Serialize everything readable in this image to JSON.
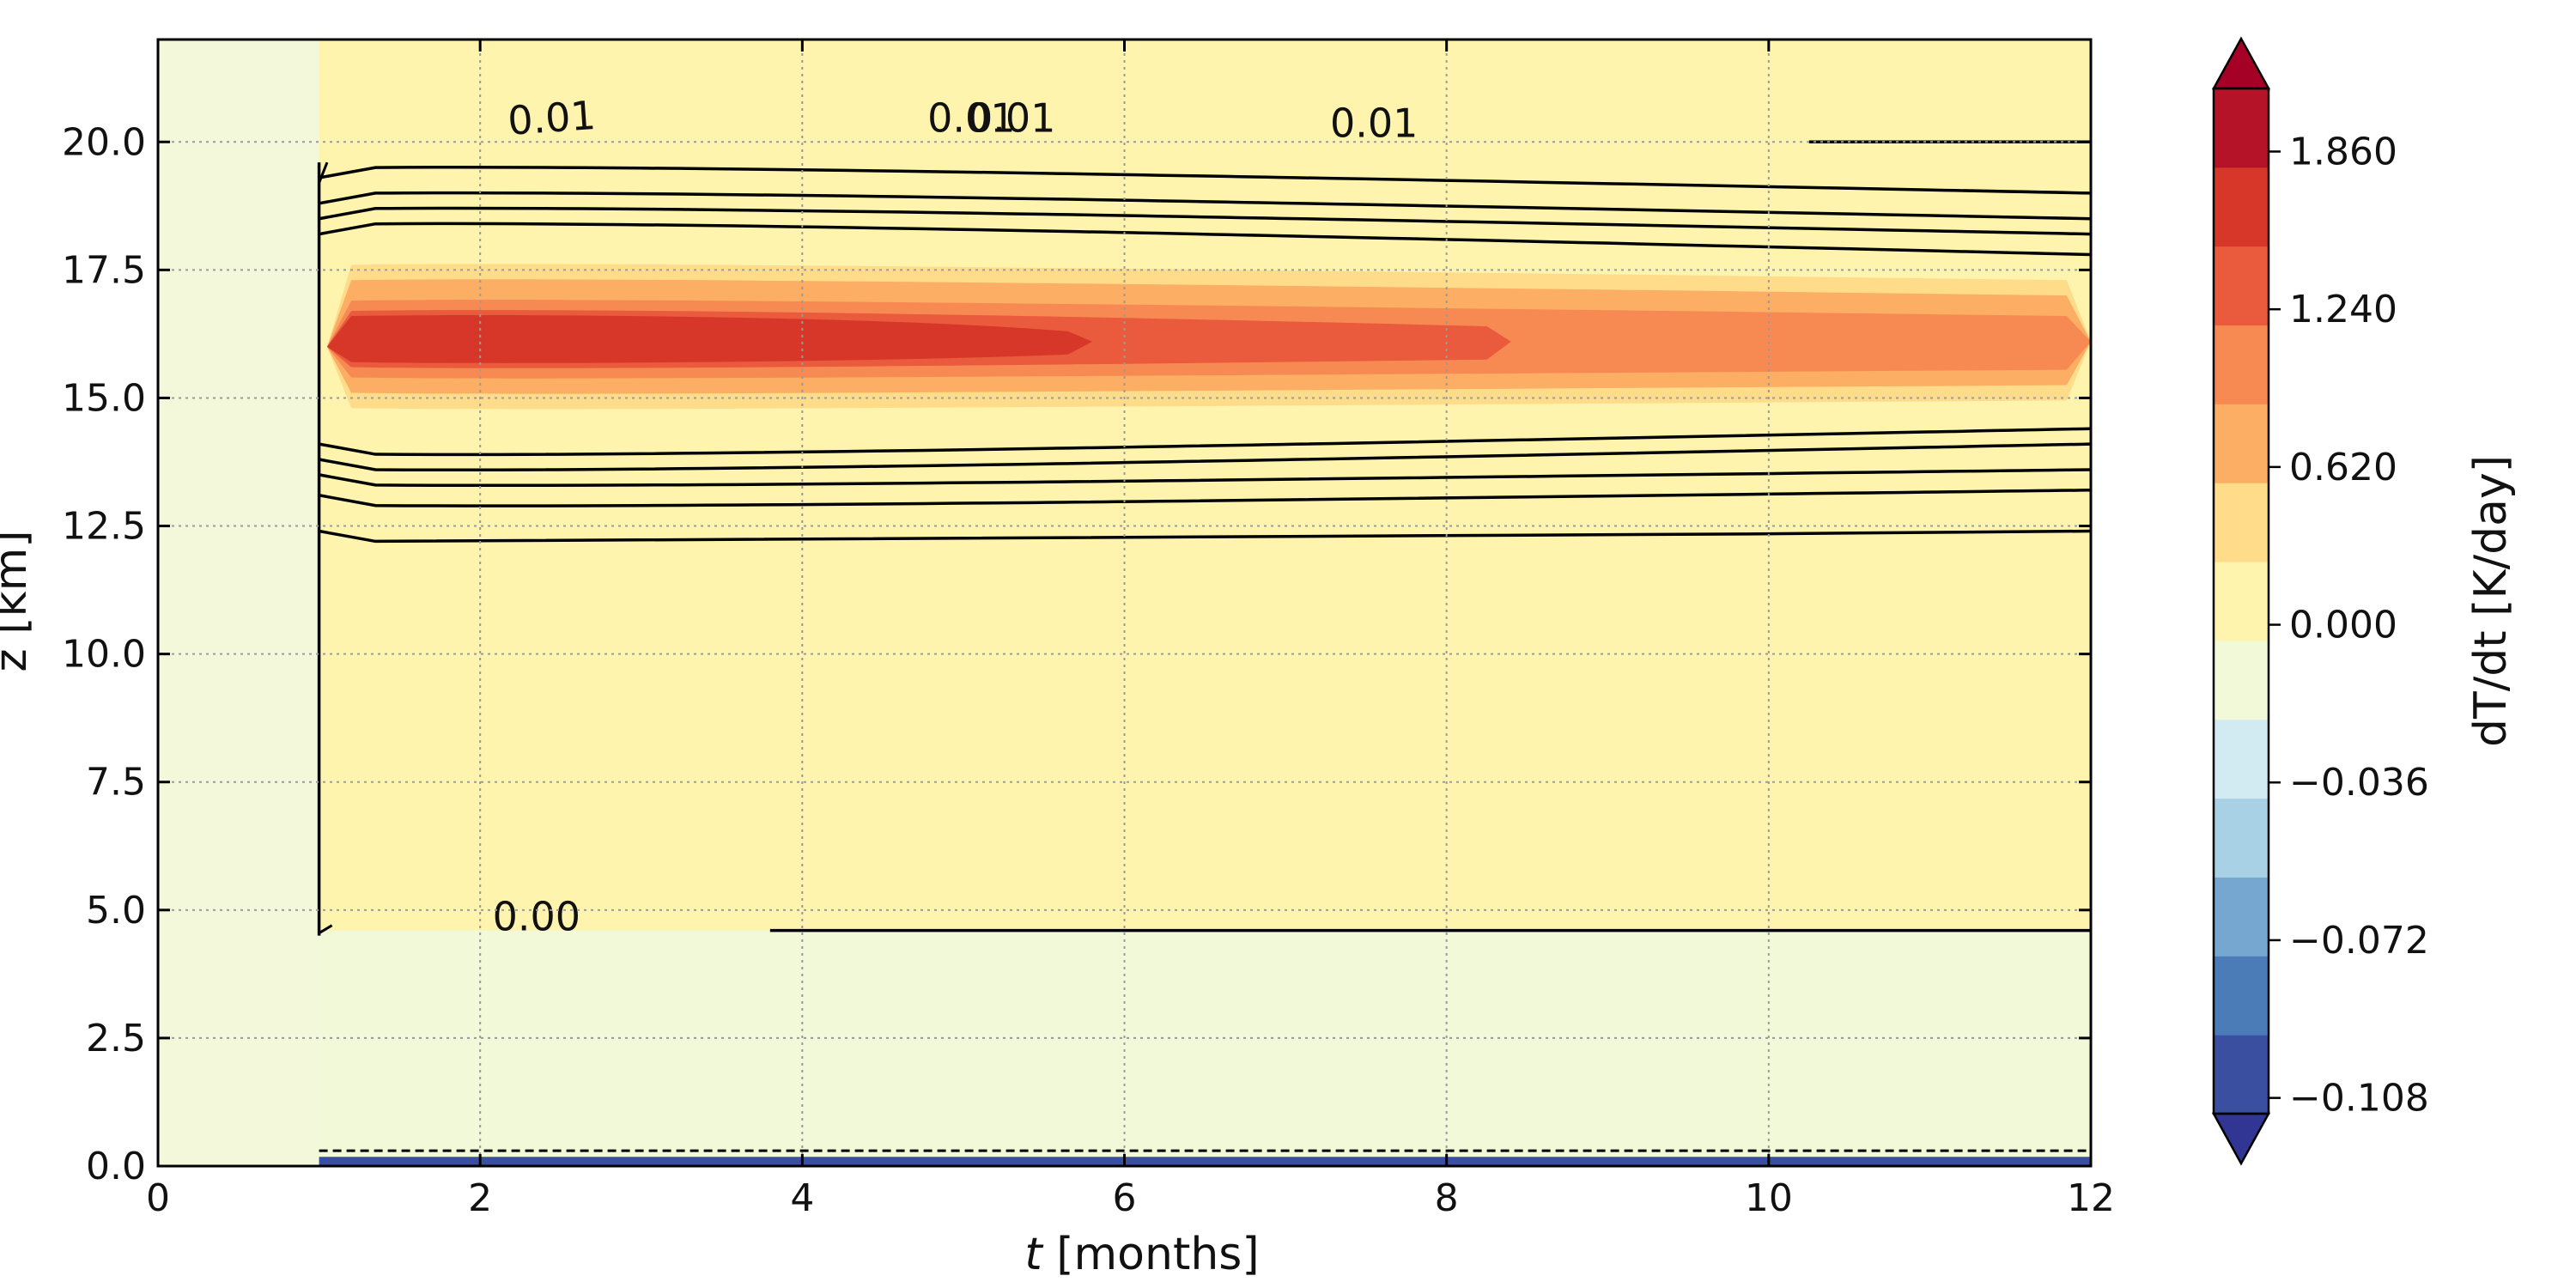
{
  "chart_data": {
    "type": "contour",
    "title": "",
    "x_axis": {
      "label_italic": "t",
      "label_rest": " [months]",
      "range": [
        0,
        12
      ],
      "ticks": [
        0,
        2,
        4,
        6,
        8,
        10,
        12
      ],
      "tick_labels": [
        "0",
        "2",
        "4",
        "6",
        "8",
        "10",
        "12"
      ]
    },
    "y_axis": {
      "label": "z [km]",
      "range": [
        0,
        22
      ],
      "ticks": [
        0,
        2.5,
        5,
        7.5,
        10,
        12.5,
        15,
        17.5,
        20
      ],
      "tick_labels": [
        "0.0",
        "2.5",
        "5.0",
        "7.5",
        "10.0",
        "12.5",
        "15.0",
        "17.5",
        "20.0"
      ]
    },
    "grid": true,
    "colorbar": {
      "label": "dT/dt [K/day]",
      "levels": [
        -0.108,
        -0.096,
        -0.084,
        -0.072,
        -0.06,
        -0.048,
        -0.036,
        -0.024,
        0.0,
        0.31,
        0.62,
        0.93,
        1.24,
        1.55,
        1.86,
        2.17
      ],
      "tick_values": [
        -0.108,
        -0.072,
        -0.036,
        0.0,
        0.62,
        1.24,
        1.86
      ],
      "tick_labels": [
        "−0.108",
        "−0.072",
        "−0.036",
        "0.000",
        "0.620",
        "1.240",
        "1.860"
      ],
      "colors": [
        "#3a4f9f",
        "#4c7cb8",
        "#75a7d0",
        "#a8d1e6",
        "#d2ebf3",
        "#f1f9d8",
        "#fff4ad",
        "#fedc8a",
        "#fcae64",
        "#f78a52",
        "#ea5a3c",
        "#d63729",
        "#b51428"
      ],
      "extend_low_color": "#313695",
      "extend_high_color": "#a50026"
    },
    "background_colors": {
      "before_onset": "#f4f8da",
      "lower_region": "#f1f9d8",
      "upper_region": "#fff4ad",
      "surface_band": "#3a4f9f"
    },
    "onset_time_months": 1.0,
    "heating_core": {
      "z_center_km": 16.0,
      "peak_time_months": 3.0,
      "bands": [
        {
          "level_index": 7,
          "z_low": 14.8,
          "z_high": 17.6,
          "t_end": 12.0
        },
        {
          "level_index": 8,
          "z_low": 15.1,
          "z_high": 17.3,
          "t_end": 12.0
        },
        {
          "level_index": 9,
          "z_low": 15.4,
          "z_high": 16.9,
          "t_end": 12.0
        },
        {
          "level_index": 10,
          "z_low": 15.6,
          "z_high": 16.7,
          "t_end": 8.4
        },
        {
          "level_index": 11,
          "z_low": 15.7,
          "z_high": 16.6,
          "t_end": 5.8
        }
      ]
    },
    "contour_lines": [
      {
        "z_start": 19.5,
        "z_end": 19.0
      },
      {
        "z_start": 19.0,
        "z_end": 18.5
      },
      {
        "z_start": 18.7,
        "z_end": 18.2
      },
      {
        "z_start": 18.4,
        "z_end": 17.8
      },
      {
        "z_start": 13.9,
        "z_end": 14.4
      },
      {
        "z_start": 13.6,
        "z_end": 14.1
      },
      {
        "z_start": 13.3,
        "z_end": 13.6
      },
      {
        "z_start": 12.9,
        "z_end": 13.2
      },
      {
        "z_start": 12.2,
        "z_end": 12.4
      }
    ],
    "zero_contour": {
      "z_km": 4.6,
      "t_start": 3.8,
      "t_end": 12.0
    },
    "top_contour": {
      "z_km": 20.0,
      "t_start": 10.25,
      "t_end": 12.0
    },
    "dashed_contour_z_km": 0.3,
    "contour_labels": [
      {
        "text": "0.01",
        "t": 2.45,
        "z": 20.2,
        "rotation": -4
      },
      {
        "text": "0.01",
        "t": 5.05,
        "z": 20.2,
        "rotation": 0
      },
      {
        "text": "0.01",
        "t": 5.3,
        "z": 20.2,
        "rotation": 0
      },
      {
        "text": "0.01",
        "t": 7.55,
        "z": 20.1,
        "rotation": 0
      },
      {
        "text": "0.00",
        "t": 2.35,
        "z": 4.6,
        "rotation": 0
      }
    ]
  }
}
